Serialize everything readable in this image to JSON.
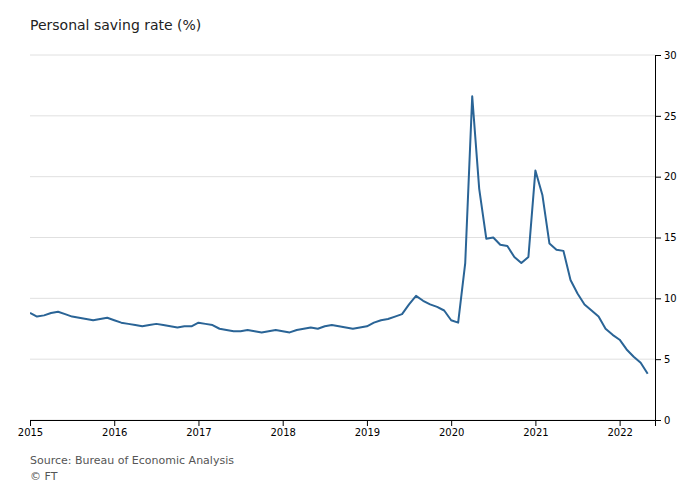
{
  "chart_data": {
    "type": "line",
    "title": "Personal saving rate (%)",
    "annotations": [
      "Source: Bureau of Economic Analysis",
      "© FT"
    ],
    "x": [
      2015.0,
      2015.083,
      2015.167,
      2015.25,
      2015.333,
      2015.417,
      2015.5,
      2015.583,
      2015.667,
      2015.75,
      2015.833,
      2015.917,
      2016.0,
      2016.083,
      2016.167,
      2016.25,
      2016.333,
      2016.417,
      2016.5,
      2016.583,
      2016.667,
      2016.75,
      2016.833,
      2016.917,
      2017.0,
      2017.083,
      2017.167,
      2017.25,
      2017.333,
      2017.417,
      2017.5,
      2017.583,
      2017.667,
      2017.75,
      2017.833,
      2017.917,
      2018.0,
      2018.083,
      2018.167,
      2018.25,
      2018.333,
      2018.417,
      2018.5,
      2018.583,
      2018.667,
      2018.75,
      2018.833,
      2018.917,
      2019.0,
      2019.083,
      2019.167,
      2019.25,
      2019.333,
      2019.417,
      2019.5,
      2019.583,
      2019.667,
      2019.75,
      2019.833,
      2019.917,
      2020.0,
      2020.083,
      2020.167,
      2020.25,
      2020.333,
      2020.417,
      2020.5,
      2020.583,
      2020.667,
      2020.75,
      2020.833,
      2020.917,
      2021.0,
      2021.083,
      2021.167,
      2021.25,
      2021.333,
      2021.417,
      2021.5,
      2021.583,
      2021.667,
      2021.75,
      2021.833,
      2021.917,
      2022.0,
      2022.083,
      2022.167,
      2022.25,
      2022.333
    ],
    "values": [
      8.8,
      8.5,
      8.6,
      8.8,
      8.9,
      8.7,
      8.5,
      8.4,
      8.3,
      8.2,
      8.3,
      8.4,
      8.2,
      8.0,
      7.9,
      7.8,
      7.7,
      7.8,
      7.9,
      7.8,
      7.7,
      7.6,
      7.7,
      7.7,
      8.0,
      7.9,
      7.8,
      7.5,
      7.4,
      7.3,
      7.3,
      7.4,
      7.3,
      7.2,
      7.3,
      7.4,
      7.3,
      7.2,
      7.4,
      7.5,
      7.6,
      7.5,
      7.7,
      7.8,
      7.7,
      7.6,
      7.5,
      7.6,
      7.7,
      8.0,
      8.2,
      8.3,
      8.5,
      8.7,
      9.5,
      10.2,
      9.8,
      9.5,
      9.3,
      9.0,
      8.2,
      8.0,
      12.9,
      26.6,
      19.0,
      14.9,
      15.0,
      14.4,
      14.3,
      13.4,
      12.9,
      13.4,
      20.5,
      18.5,
      14.5,
      14.0,
      13.9,
      11.5,
      10.4,
      9.5,
      9.0,
      8.5,
      7.5,
      7.0,
      6.6,
      5.8,
      5.2,
      4.7,
      3.8
    ],
    "color": "#2a6496",
    "xlim": [
      2015.0,
      2022.42
    ],
    "xticks": [
      2015,
      2016,
      2017,
      2018,
      2019,
      2020,
      2021,
      2022
    ],
    "ylim": [
      0,
      30
    ],
    "yticks": [
      0,
      5,
      10,
      15,
      20,
      25,
      30
    ],
    "grid": true
  }
}
